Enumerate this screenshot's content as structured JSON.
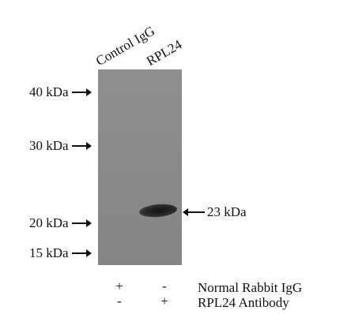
{
  "lanes": [
    "Control IgG",
    "RPL24"
  ],
  "markers": [
    "40 kDa",
    "30 kDa",
    "20 kDa",
    "15 kDa"
  ],
  "band_label": "23 kDa",
  "conditions": [
    {
      "label": "Normal Rabbit IgG",
      "lane1": "+",
      "lane2": "-"
    },
    {
      "label": "RPL24 Antibody",
      "lane1": "-",
      "lane2": "+"
    }
  ]
}
